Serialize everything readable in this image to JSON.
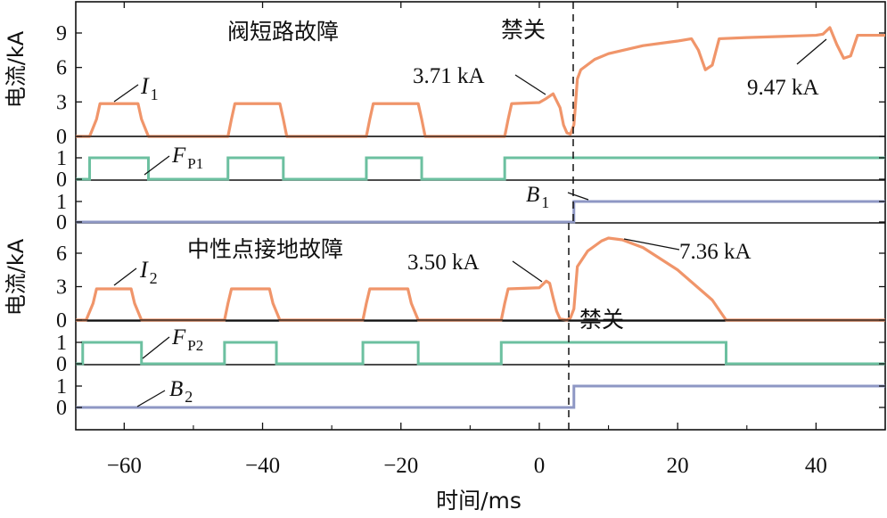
{
  "chart_data": {
    "type": "line",
    "xlabel": "时间/ms",
    "xlim": [
      -67,
      50
    ],
    "xticks": [
      "−60",
      "−40",
      "−20",
      "0",
      "20",
      "40"
    ],
    "xtick_values": [
      -60,
      -40,
      -20,
      0,
      20,
      40
    ],
    "panels": [
      {
        "id": "i1",
        "title": "阀短路故障",
        "ylabel": "电流/kA",
        "ylim": [
          0,
          11.5
        ],
        "yticks": [
          "0",
          "3",
          "6",
          "9"
        ],
        "ytick_values": [
          0,
          3,
          6,
          9
        ],
        "series": [
          {
            "name": "I1",
            "label_main": "I",
            "label_sub": "1",
            "color": "#f0956a",
            "x": [
              -65,
              -64,
              -63.5,
              -62,
              -59,
              -58,
              -57.5,
              -56.5,
              -45,
              -44.5,
              -44,
              -38.5,
              -37.5,
              -37,
              -36.5,
              -25,
              -24.5,
              -24,
              -18.5,
              -17.5,
              -17,
              -16.5,
              -5,
              -4.5,
              -4,
              0,
              1,
              2,
              3,
              3.5,
              4,
              4.5,
              5,
              5.2,
              5.5,
              6,
              8,
              10,
              15,
              20,
              22,
              23,
              24,
              25,
              26,
              30,
              35,
              40,
              41,
              42,
              43,
              44,
              45,
              46,
              50
            ],
            "y": [
              0,
              1.5,
              2.85,
              2.85,
              2.85,
              2.85,
              1.5,
              0,
              0,
              1.5,
              2.85,
              2.85,
              2.85,
              1.5,
              0,
              0,
              1.5,
              2.85,
              2.85,
              2.85,
              1.5,
              0,
              0,
              1.5,
              2.85,
              2.95,
              3.3,
              3.71,
              2.5,
              1.0,
              0.3,
              0.2,
              1.0,
              2.5,
              5.0,
              5.8,
              6.7,
              7.2,
              7.9,
              8.3,
              8.5,
              7.5,
              5.8,
              6.2,
              8.5,
              8.6,
              8.7,
              8.8,
              8.9,
              9.47,
              8.0,
              6.8,
              7.0,
              8.8,
              8.8
            ]
          }
        ],
        "annotations": [
          {
            "text": "3.71 kA",
            "x": 2,
            "y": 3.71
          },
          {
            "text": "9.47 kA",
            "x": 42,
            "y": 9.47
          },
          {
            "text": "禁关",
            "x": 5,
            "y": 11
          }
        ]
      },
      {
        "id": "fp1",
        "ylim": [
          0,
          1.3
        ],
        "yticks": [
          "0",
          "1"
        ],
        "ytick_values": [
          0,
          1
        ],
        "series": [
          {
            "name": "FP1",
            "label_main": "F",
            "label_sub": "P1",
            "color": "#6cc0a0",
            "steps": [
              [
                -67,
                0
              ],
              [
                -65,
                1
              ],
              [
                -56.5,
                0
              ],
              [
                -45,
                1
              ],
              [
                -37,
                0
              ],
              [
                -25,
                1
              ],
              [
                -17,
                0
              ],
              [
                -5,
                1
              ]
            ]
          }
        ]
      },
      {
        "id": "b1",
        "ylim": [
          0,
          1.3
        ],
        "yticks": [
          "0",
          "1"
        ],
        "ytick_values": [
          0,
          1
        ],
        "series": [
          {
            "name": "B1",
            "label_main": "B",
            "label_sub": "1",
            "color": "#8e97c4",
            "steps": [
              [
                -67,
                0
              ],
              [
                5,
                1
              ]
            ]
          }
        ]
      },
      {
        "id": "i2",
        "title": "中性点接地故障",
        "ylabel": "电流/kA",
        "ylim": [
          0,
          9
        ],
        "yticks": [
          "0",
          "3",
          "6"
        ],
        "ytick_values": [
          0,
          3,
          6
        ],
        "series": [
          {
            "name": "I2",
            "label_main": "I",
            "label_sub": "2",
            "color": "#f0956a",
            "x": [
              -65.5,
              -64.5,
              -64,
              -59,
              -58.5,
              -57.5,
              -45.5,
              -45,
              -44.5,
              -39,
              -38.5,
              -37.5,
              -25.5,
              -25,
              -24.5,
              -19,
              -18.5,
              -17.5,
              -5.5,
              -5,
              -4.5,
              0,
              1,
              1.5,
              2,
              2.5,
              3,
              4,
              4.5,
              5,
              5.5,
              7,
              9,
              10,
              12,
              15,
              20,
              25,
              27
            ],
            "y": [
              0,
              1.5,
              2.8,
              2.8,
              1.5,
              0,
              0,
              1.5,
              2.8,
              2.8,
              1.5,
              0,
              0,
              1.5,
              2.8,
              2.8,
              1.5,
              0,
              0,
              1.5,
              2.8,
              2.9,
              3.5,
              3.3,
              2.0,
              0.8,
              0.1,
              0,
              0.2,
              1.0,
              4.8,
              6.2,
              7.1,
              7.36,
              7.2,
              6.5,
              4.5,
              1.8,
              0
            ]
          }
        ],
        "annotations": [
          {
            "text": "3.50 kA",
            "x": 1,
            "y": 3.5
          },
          {
            "text": "7.36 kA",
            "x": 10,
            "y": 7.36
          },
          {
            "text": "禁关",
            "x": 5,
            "y": 0
          }
        ]
      },
      {
        "id": "fp2",
        "ylim": [
          0,
          1.3
        ],
        "yticks": [
          "0",
          "1"
        ],
        "ytick_values": [
          0,
          1
        ],
        "series": [
          {
            "name": "FP2",
            "label_main": "F",
            "label_sub": "P2",
            "color": "#6cc0a0",
            "steps": [
              [
                -67,
                0
              ],
              [
                -66,
                1
              ],
              [
                -57.5,
                0
              ],
              [
                -45.5,
                1
              ],
              [
                -38,
                0
              ],
              [
                -25.5,
                1
              ],
              [
                -17.5,
                0
              ],
              [
                -5.5,
                1
              ],
              [
                27,
                0
              ]
            ]
          }
        ]
      },
      {
        "id": "b2",
        "ylim": [
          0,
          1.3
        ],
        "yticks": [
          "0",
          "1"
        ],
        "ytick_values": [
          0,
          1
        ],
        "series": [
          {
            "name": "B2",
            "label_main": "B",
            "label_sub": "2",
            "color": "#8e97c4",
            "steps": [
              [
                -67,
                0
              ],
              [
                5,
                1
              ]
            ]
          }
        ]
      }
    ]
  }
}
